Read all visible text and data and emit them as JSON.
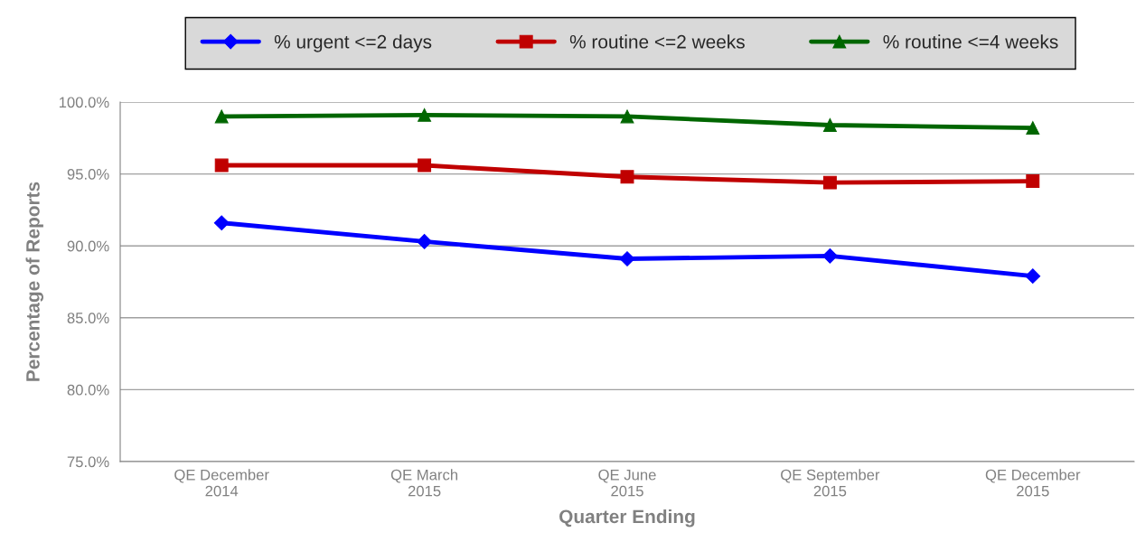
{
  "chart_data": {
    "type": "line",
    "xlabel": "Quarter Ending",
    "ylabel": "Percentage of Reports",
    "categories": [
      "QE December\n2014",
      "QE March\n2015",
      "QE June\n2015",
      "QE September\n2015",
      "QE December\n2015"
    ],
    "series": [
      {
        "name": "% urgent <=2 days",
        "color": "#0000ff",
        "marker": "diamond",
        "values": [
          91.6,
          90.3,
          89.1,
          89.3,
          87.9
        ]
      },
      {
        "name": "% routine <=2 weeks",
        "color": "#c00000",
        "marker": "square",
        "values": [
          95.6,
          95.6,
          94.8,
          94.4,
          94.5
        ]
      },
      {
        "name": "% routine <=4 weeks",
        "color": "#006600",
        "marker": "triangle",
        "values": [
          99.0,
          99.1,
          99.0,
          98.4,
          98.2
        ]
      }
    ],
    "ylim": [
      75,
      100
    ],
    "yticks": [
      {
        "value": 75,
        "label": "75.0%"
      },
      {
        "value": 80,
        "label": "80.0%"
      },
      {
        "value": 85,
        "label": "85.0%"
      },
      {
        "value": 90,
        "label": "90.0%"
      },
      {
        "value": 95,
        "label": "95.0%"
      },
      {
        "value": 100,
        "label": "100.0%"
      }
    ],
    "grid": "y",
    "legend": "top",
    "line_style": "solid"
  }
}
